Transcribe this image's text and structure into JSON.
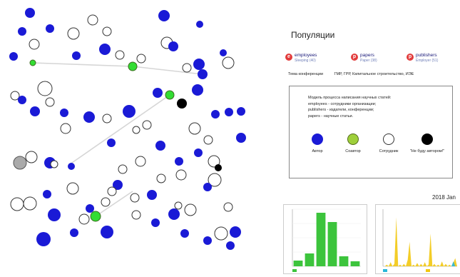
{
  "panel": {
    "title": "Популяции",
    "populations": [
      {
        "name": "employees",
        "sub": "Sleeping (40)"
      },
      {
        "name": "papers",
        "sub": "Paper (38)"
      },
      {
        "name": "publishers",
        "sub": "Employer (51)"
      }
    ],
    "topic_label": "Тема  конференции",
    "topic_value": "ГМР, ГРР, Капитальное строительство, ИЭЕ"
  },
  "legend": {
    "text": "Модель процесса написания научных статей:\nemployees - сотрудники организации;\npublishers - издатели, конференции;\npapers - научные статьи.",
    "items": [
      {
        "label": "Автор",
        "color": "#1a1ad6"
      },
      {
        "label": "Соавтор",
        "color": "#9ecf3a"
      },
      {
        "label": "Сотрудник",
        "color": "#ffffff"
      },
      {
        "label": "\"Не буду автором!\"",
        "color": "#000000"
      }
    ]
  },
  "date_label": "2018 Jan",
  "colors": {
    "author": "#1a1ad6",
    "coauthor": "#33dd33",
    "employee": "#ffffff",
    "refused": "#000000",
    "neutral": "#aaaaaa",
    "hist_bar": "#3cc43c",
    "ts_yellow": "#f2c811",
    "ts_cyan": "#2ab7d9"
  },
  "chart_data": [
    {
      "type": "bar",
      "categories": [
        "1",
        "2",
        "3",
        "4",
        "5",
        "6"
      ],
      "values": [
        8,
        18,
        75,
        62,
        14,
        7
      ],
      "ylim": [
        0,
        80
      ]
    },
    {
      "type": "area",
      "series": [
        {
          "color": "yellow",
          "values": [
            0,
            0,
            2,
            0,
            5,
            0,
            3,
            60,
            0,
            2,
            0,
            3,
            0,
            8,
            30,
            0,
            2,
            0,
            4,
            0,
            3,
            0,
            5,
            0,
            2,
            40,
            0,
            3,
            0,
            2,
            0,
            6,
            0,
            3,
            0,
            2,
            0,
            4,
            10,
            0
          ]
        },
        {
          "color": "cyan",
          "values": [
            0,
            0,
            0,
            0,
            0,
            0,
            0,
            0,
            0,
            0,
            0,
            0,
            0,
            0,
            0,
            0,
            0,
            0,
            0,
            0,
            0,
            0,
            0,
            0,
            0,
            0,
            0,
            0,
            0,
            0,
            0,
            0,
            0,
            0,
            0,
            0,
            0,
            6,
            0,
            0
          ]
        }
      ],
      "ylim": [
        0,
        70
      ]
    }
  ]
}
